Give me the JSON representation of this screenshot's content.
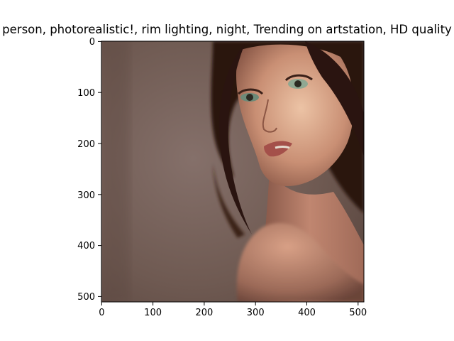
{
  "figure": {
    "title": "person,  photorealistic!, rim lighting, night, Trending on artstation, HD quality"
  },
  "image_panel": {
    "subject": "portrait",
    "palette": {
      "background": "#7d675f",
      "hair": "#2a1410",
      "skin": "#c48a72",
      "skin_highlight": "#e8b89c",
      "lips": "#a4504a",
      "eyes": "#8fa892"
    }
  },
  "axes": {
    "x_ticks": [
      "0",
      "100",
      "200",
      "300",
      "400",
      "500"
    ],
    "y_ticks": [
      "0",
      "100",
      "200",
      "300",
      "400",
      "500"
    ],
    "x_range": [
      0,
      512
    ],
    "y_range": [
      0,
      512
    ]
  }
}
